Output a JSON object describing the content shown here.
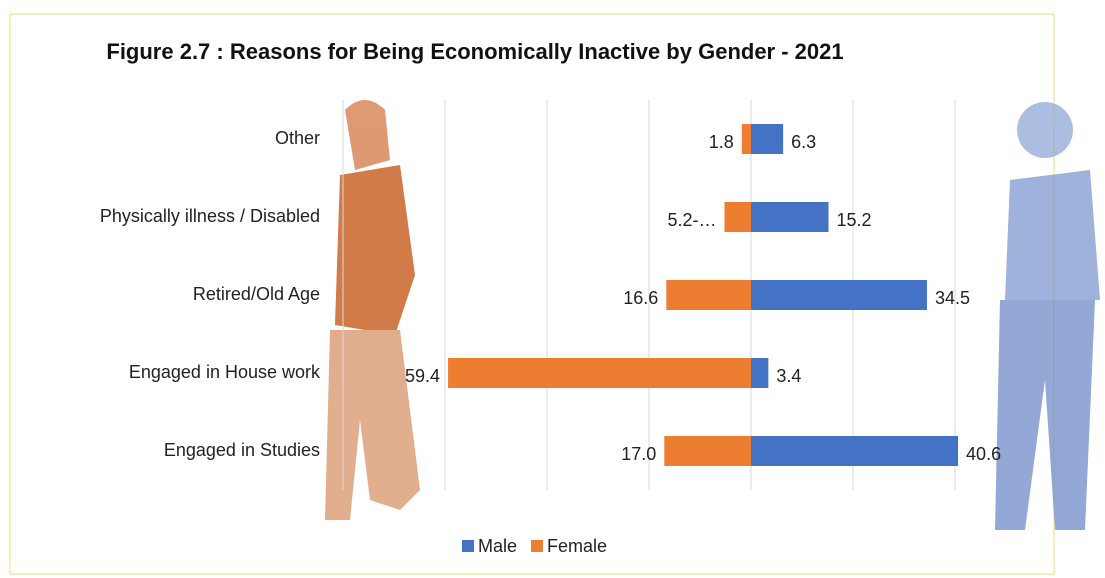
{
  "chart_data": {
    "type": "diverging-bar",
    "title": "Figure 2.7  : Reasons for Being Economically Inactive by Gender - 2021",
    "categories": [
      "Other",
      "Physically illness / Disabled",
      "Retired/Old Age",
      "Engaged in House work",
      "Engaged in Studies"
    ],
    "series": [
      {
        "name": "Male",
        "color": "#4472c4",
        "side": "right",
        "values": [
          6.3,
          15.2,
          34.5,
          3.4,
          40.6
        ]
      },
      {
        "name": "Female",
        "color": "#ed7d31",
        "side": "left",
        "values": [
          1.8,
          5.2,
          16.6,
          59.4,
          17.0
        ],
        "value_labels": [
          "1.8",
          "5.2-…",
          "16.6",
          "59.4",
          "17.0"
        ]
      }
    ],
    "xlim": [
      -80,
      40
    ],
    "xticks": [
      -80,
      -60,
      -40,
      -20,
      0,
      20,
      40
    ],
    "grid": true,
    "legend": "bottom"
  }
}
